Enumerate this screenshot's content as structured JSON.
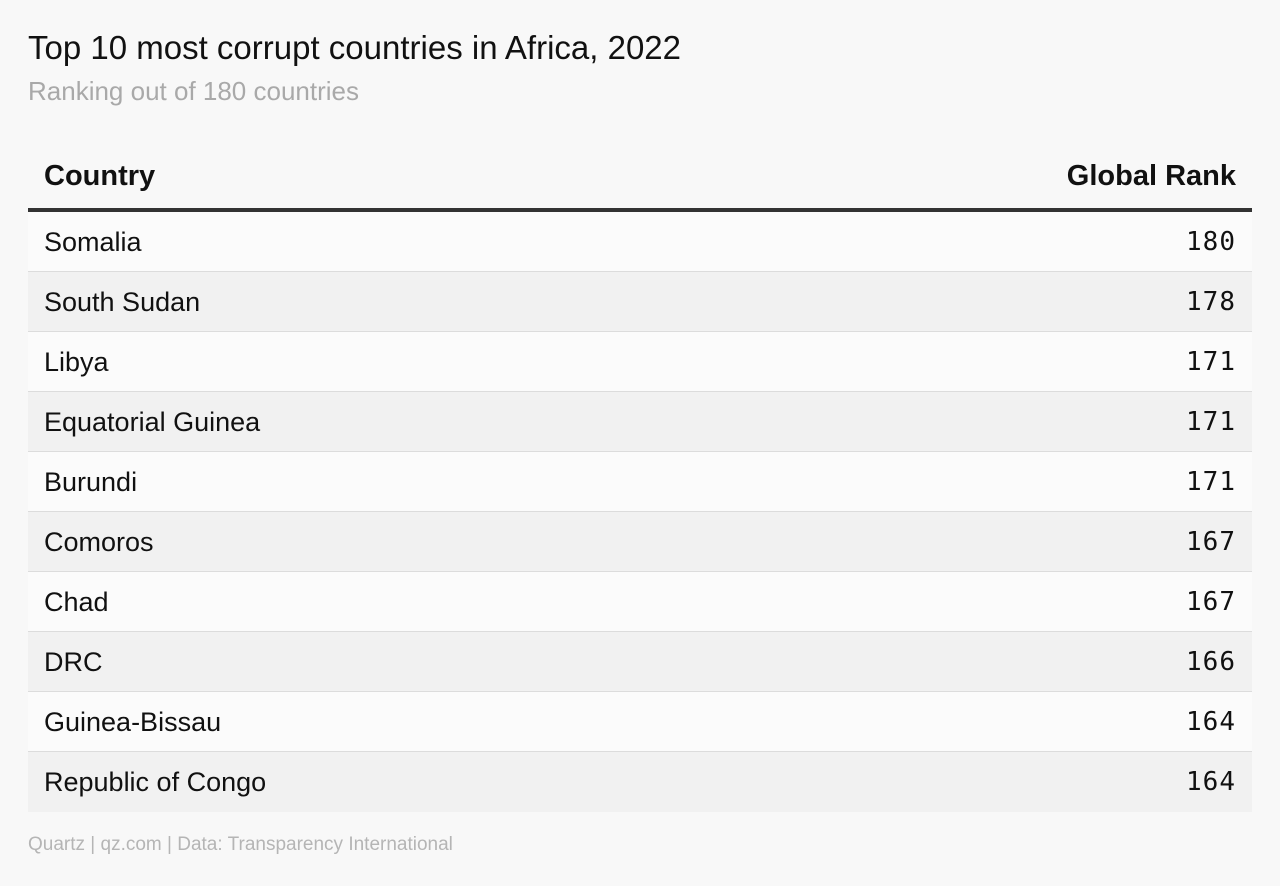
{
  "title": "Top 10 most corrupt countries in Africa, 2022",
  "subtitle": "Ranking out of 180 countries",
  "footer": "Quartz | qz.com | Data: Transparency International",
  "colors": {
    "background": "#f8f8f8",
    "header_rule": "#333333",
    "row_alt": "#f1f1f1",
    "subtitle": "#a9a9a9"
  },
  "chart_data": {
    "type": "table",
    "title": "Top 10 most corrupt countries in Africa, 2022",
    "subtitle": "Ranking out of 180 countries",
    "columns": [
      "Country",
      "Global Rank"
    ],
    "rows": [
      {
        "country": "Somalia",
        "rank": "180"
      },
      {
        "country": "South Sudan",
        "rank": "178"
      },
      {
        "country": "Libya",
        "rank": "171"
      },
      {
        "country": "Equatorial Guinea",
        "rank": "171"
      },
      {
        "country": "Burundi",
        "rank": "171"
      },
      {
        "country": "Comoros",
        "rank": "167"
      },
      {
        "country": "Chad",
        "rank": "167"
      },
      {
        "country": "DRC",
        "rank": "166"
      },
      {
        "country": "Guinea-Bissau",
        "rank": "164"
      },
      {
        "country": "Republic of Congo",
        "rank": "164"
      }
    ]
  }
}
